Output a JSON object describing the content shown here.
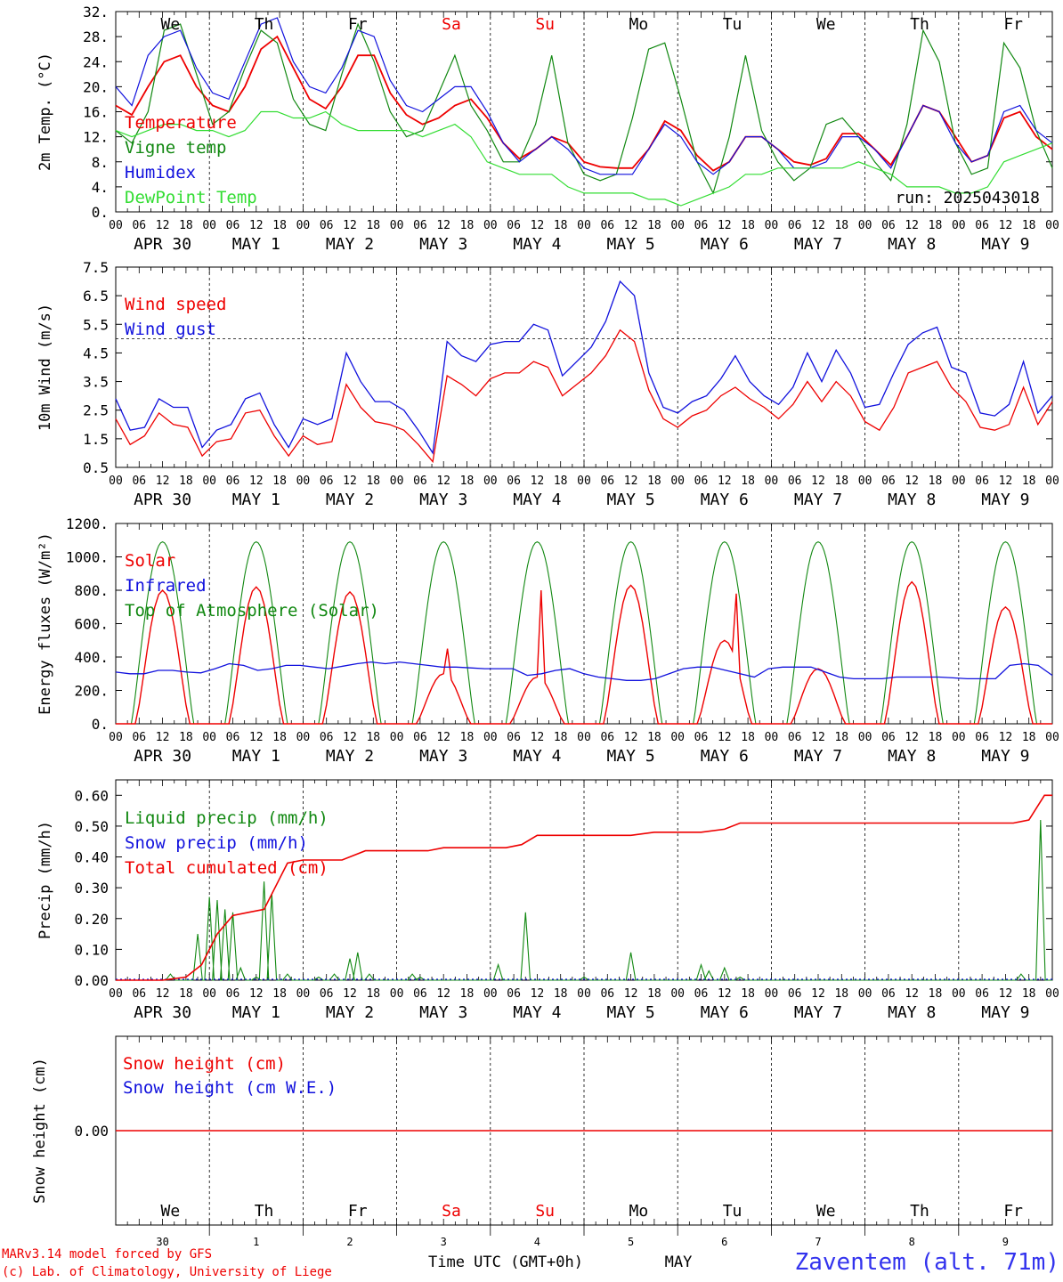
{
  "days": [
    {
      "dow": "We",
      "label": "APR 30",
      "num": "30",
      "weekend": false
    },
    {
      "dow": "Th",
      "label": "MAY 1",
      "num": "1",
      "weekend": false
    },
    {
      "dow": "Fr",
      "label": "MAY 2",
      "num": "2",
      "weekend": false
    },
    {
      "dow": "Sa",
      "label": "MAY 3",
      "num": "3",
      "weekend": true
    },
    {
      "dow": "Su",
      "label": "MAY 4",
      "num": "4",
      "weekend": true
    },
    {
      "dow": "Mo",
      "label": "MAY 5",
      "num": "5",
      "weekend": false
    },
    {
      "dow": "Tu",
      "label": "MAY 6",
      "num": "6",
      "weekend": false
    },
    {
      "dow": "We",
      "label": "MAY 7",
      "num": "7",
      "weekend": false
    },
    {
      "dow": "Th",
      "label": "MAY 8",
      "num": "8",
      "weekend": false
    },
    {
      "dow": "Fr",
      "label": "MAY 9",
      "num": "9",
      "weekend": false
    }
  ],
  "hour_labels": [
    "00",
    "06",
    "12",
    "18"
  ],
  "end_hour_label": "00",
  "run_label": "run: 2025043018",
  "footer": {
    "credit_line1": "MARv3.14 model forced by GFS",
    "credit_line2": "(c) Lab. of Climatology, University of Liege",
    "time_axis_label": "Time UTC (GMT+0h)",
    "month_label": "MAY",
    "station": "Zaventem (alt. 71m)"
  },
  "colors": {
    "red": "#ee0000",
    "green": "#118811",
    "blue": "#1111dd",
    "lightgreen": "#33dd33",
    "weekend": "#ee0000",
    "station": "#3333ee"
  },
  "chart_data": [
    {
      "type": "line",
      "ylabel": "2m Temp. (°C)",
      "ylim": [
        0,
        32
      ],
      "yticks": [
        "0.",
        "4.",
        "8.",
        "12.",
        "16.",
        "20.",
        "24.",
        "28.",
        "32."
      ],
      "x": "hours since start, 6-hourly",
      "series": [
        {
          "name": "Temperature",
          "color": "red",
          "values": [
            17,
            15.5,
            20,
            24,
            25,
            20,
            17,
            16,
            20,
            26,
            28,
            23,
            18,
            16.5,
            20,
            25,
            25,
            19,
            15.5,
            14,
            15,
            17,
            18,
            15,
            11,
            8.5,
            10,
            12,
            11,
            8,
            7.2,
            7,
            7,
            10,
            14.5,
            13,
            9,
            6.6,
            8,
            12,
            12,
            10,
            8,
            7.5,
            8.5,
            12.5,
            12.5,
            10,
            7.5,
            12,
            17,
            16,
            12,
            8,
            9,
            15,
            16,
            12,
            10
          ]
        },
        {
          "name": "Vigne temp",
          "color": "green",
          "values": [
            13,
            11,
            16,
            29,
            30,
            22,
            14,
            16,
            23,
            29,
            27,
            18,
            14,
            13,
            22,
            30,
            24,
            16,
            12,
            13,
            19,
            25,
            17,
            13,
            8,
            8,
            14,
            25,
            11,
            6,
            5,
            6,
            15,
            26,
            27,
            18,
            8,
            3,
            12,
            25,
            13,
            8,
            5,
            7,
            14,
            15,
            12,
            8,
            5,
            14,
            29,
            24,
            11,
            6,
            7,
            27,
            23,
            13,
            7
          ]
        },
        {
          "name": "Humidex",
          "color": "blue",
          "values": [
            20,
            17,
            25,
            28,
            29,
            23,
            19,
            18,
            24,
            30,
            31,
            24,
            20,
            19,
            23,
            29,
            28,
            21,
            17,
            16,
            18,
            20,
            20,
            16,
            11,
            8,
            10,
            12,
            10,
            7,
            6,
            6,
            6,
            10,
            14,
            12,
            8,
            6,
            8,
            12,
            12,
            10,
            7,
            7,
            8,
            12,
            12,
            10,
            7,
            12,
            17,
            16,
            11,
            8,
            9,
            16,
            17,
            13,
            11
          ]
        },
        {
          "name": "DewPoint Temp",
          "color": "lightgreen",
          "values": [
            13,
            12,
            13,
            14,
            14,
            13,
            13,
            12,
            13,
            16,
            16,
            15,
            15,
            16,
            14,
            13,
            13,
            13,
            13,
            12,
            13,
            14,
            12,
            8,
            7,
            6,
            6,
            6,
            4,
            3,
            3,
            3,
            3,
            2,
            2,
            1,
            2,
            3,
            4,
            6,
            6,
            7,
            7,
            7,
            7,
            7,
            8,
            7,
            6,
            4,
            4,
            4,
            3,
            3,
            4,
            8,
            9,
            10,
            11
          ]
        }
      ]
    },
    {
      "type": "line",
      "ylabel": "10m Wind (m/s)",
      "ylim": [
        0.5,
        7.5
      ],
      "yticks": [
        "0.5",
        "1.5",
        "2.5",
        "3.5",
        "4.5",
        "5.5",
        "6.5",
        "7.5"
      ],
      "reference_line": 5,
      "series": [
        {
          "name": "Wind speed",
          "color": "red",
          "values": [
            2.2,
            1.3,
            1.6,
            2.4,
            2,
            1.9,
            0.9,
            1.4,
            1.5,
            2.4,
            2.5,
            1.6,
            0.9,
            1.6,
            1.3,
            1.4,
            3.4,
            2.6,
            2.1,
            2,
            1.8,
            1.3,
            0.7,
            3.7,
            3.4,
            3,
            3.6,
            3.8,
            3.8,
            4.2,
            4,
            3,
            3.4,
            3.8,
            4.4,
            5.3,
            4.9,
            3.2,
            2.2,
            1.9,
            2.3,
            2.5,
            3,
            3.3,
            2.9,
            2.6,
            2.2,
            2.7,
            3.5,
            2.8,
            3.5,
            3,
            2.1,
            1.8,
            2.6,
            3.8,
            4,
            4.2,
            3.3,
            2.8,
            1.9,
            1.8,
            2,
            3.3,
            2,
            2.8
          ]
        },
        {
          "name": "Wind gust",
          "color": "blue",
          "values": [
            2.9,
            1.8,
            1.9,
            2.9,
            2.6,
            2.6,
            1.2,
            1.8,
            2,
            2.9,
            3.1,
            2,
            1.2,
            2.2,
            2,
            2.2,
            4.5,
            3.5,
            2.8,
            2.8,
            2.5,
            1.8,
            1,
            4.9,
            4.4,
            4.2,
            4.8,
            4.9,
            4.9,
            5.5,
            5.3,
            3.7,
            4.2,
            4.7,
            5.6,
            7,
            6.5,
            3.8,
            2.6,
            2.4,
            2.8,
            3,
            3.6,
            4.4,
            3.5,
            3,
            2.7,
            3.3,
            4.5,
            3.5,
            4.6,
            3.8,
            2.6,
            2.7,
            3.8,
            4.8,
            5.2,
            5.4,
            4,
            3.8,
            2.4,
            2.3,
            2.7,
            4.2,
            2.4,
            3
          ]
        }
      ]
    },
    {
      "type": "line",
      "ylabel": "Energy fluxes (W/m²)",
      "ylim": [
        0,
        1200
      ],
      "yticks": [
        "0.",
        "200.",
        "400.",
        "600.",
        "800.",
        "1000.",
        "1200."
      ],
      "series": [
        {
          "name": "Solar",
          "color": "red",
          "day_peaks": [
            800,
            820,
            790,
            300,
            280,
            830,
            500,
            330,
            850,
            700
          ],
          "spikes": [
            [
              3,
              13,
              450
            ],
            [
              4,
              13,
              800
            ],
            [
              6,
              15,
              780
            ],
            [
              9,
              20,
              500
            ]
          ]
        },
        {
          "name": "Infrared",
          "color": "blue",
          "values": [
            310,
            300,
            300,
            320,
            320,
            310,
            305,
            330,
            360,
            350,
            320,
            330,
            350,
            350,
            340,
            330,
            345,
            360,
            370,
            360,
            370,
            360,
            350,
            340,
            340,
            335,
            330,
            330,
            330,
            290,
            300,
            320,
            330,
            300,
            280,
            270,
            260,
            260,
            270,
            300,
            330,
            340,
            340,
            320,
            300,
            280,
            330,
            340,
            340,
            340,
            310,
            280,
            270,
            270,
            270,
            280,
            280,
            280,
            280,
            275,
            270,
            270,
            270,
            350,
            360,
            350,
            290
          ]
        },
        {
          "name": "Top of Atmosphere (Solar)",
          "color": "green",
          "daily_max": 1090,
          "sunrise_hour": 4,
          "sunset_hour": 20
        }
      ]
    },
    {
      "type": "line",
      "ylabel": "Precip (mm/h)",
      "ylim": [
        0,
        0.65
      ],
      "yticks": [
        "0.00",
        "0.10",
        "0.20",
        "0.30",
        "0.40",
        "0.50",
        "0.60"
      ],
      "series": [
        {
          "name": "Liquid precip (mm/h)",
          "color": "green",
          "events": [
            [
              14,
              0.02
            ],
            [
              21,
              0.15
            ],
            [
              24,
              0.27
            ],
            [
              26,
              0.26
            ],
            [
              28,
              0.23
            ],
            [
              30,
              0.22
            ],
            [
              32,
              0.04
            ],
            [
              36,
              0.01
            ],
            [
              38,
              0.32
            ],
            [
              40,
              0.28
            ],
            [
              44,
              0.02
            ],
            [
              52,
              0.01
            ],
            [
              56,
              0.02
            ],
            [
              60,
              0.07
            ],
            [
              62,
              0.09
            ],
            [
              65,
              0.02
            ],
            [
              76,
              0.02
            ],
            [
              78,
              0.01
            ],
            [
              98,
              0.05
            ],
            [
              105,
              0.22
            ],
            [
              120,
              0.01
            ],
            [
              132,
              0.09
            ],
            [
              150,
              0.05
            ],
            [
              152,
              0.03
            ],
            [
              156,
              0.04
            ],
            [
              160,
              0.01
            ],
            [
              232,
              0.02
            ],
            [
              237,
              0.52
            ]
          ]
        },
        {
          "name": "Snow precip (mm/h)",
          "color": "blue",
          "values": []
        },
        {
          "name": "Total cumulated (cm)",
          "color": "red",
          "points": [
            [
              0,
              0
            ],
            [
              12,
              0
            ],
            [
              18,
              0.01
            ],
            [
              22,
              0.05
            ],
            [
              26,
              0.15
            ],
            [
              30,
              0.21
            ],
            [
              34,
              0.22
            ],
            [
              38,
              0.23
            ],
            [
              42,
              0.33
            ],
            [
              44,
              0.38
            ],
            [
              48,
              0.39
            ],
            [
              54,
              0.39
            ],
            [
              58,
              0.39
            ],
            [
              64,
              0.42
            ],
            [
              80,
              0.42
            ],
            [
              84,
              0.43
            ],
            [
              100,
              0.43
            ],
            [
              104,
              0.44
            ],
            [
              108,
              0.47
            ],
            [
              132,
              0.47
            ],
            [
              138,
              0.48
            ],
            [
              150,
              0.48
            ],
            [
              156,
              0.49
            ],
            [
              160,
              0.51
            ],
            [
              230,
              0.51
            ],
            [
              234,
              0.52
            ],
            [
              238,
              0.6
            ],
            [
              240,
              0.6
            ]
          ]
        }
      ]
    },
    {
      "type": "line",
      "ylabel": "Snow height (cm)",
      "yticks": [
        "0.00"
      ],
      "series": [
        {
          "name": "Snow height (cm)",
          "color": "red",
          "values": [
            0,
            0
          ]
        },
        {
          "name": "Snow height (cm W.E.)",
          "color": "blue",
          "values": []
        }
      ]
    }
  ]
}
